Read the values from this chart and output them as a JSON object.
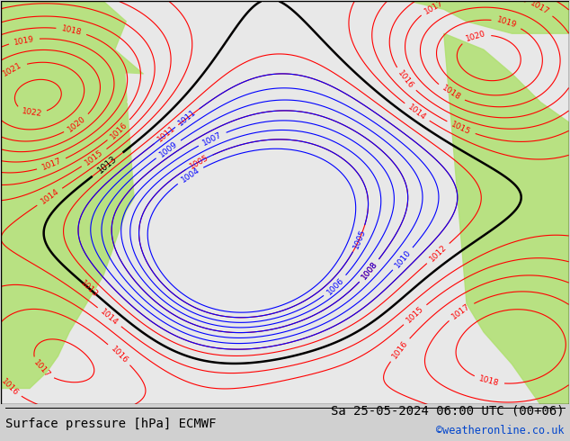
{
  "title_left": "Surface pressure [hPa] ECMWF",
  "title_right": "Sa 25-05-2024 06:00 UTC (00+06)",
  "credit": "©weatheronline.co.uk",
  "bg_color": "#d0d0d0",
  "green_color": "#b0e070",
  "map_bg": "#e8e8e8",
  "border_color": "#000000",
  "label_fontsize": 9,
  "title_fontsize": 10,
  "credit_color": "#0044cc"
}
